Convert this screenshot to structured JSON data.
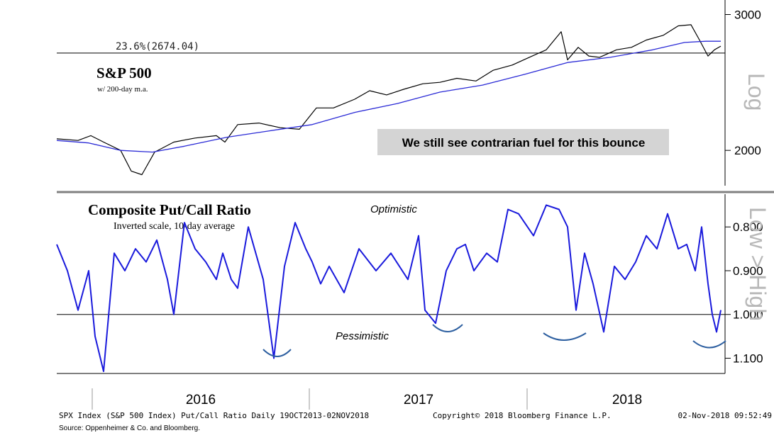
{
  "chart_data": [
    {
      "type": "line",
      "title": "S&P 500",
      "subtitle": "w/ 200-day m.a.",
      "scale_label": "Log",
      "y_axis": {
        "scale": "log",
        "ticks": [
          3000,
          2000
        ],
        "tick_labels": [
          "3000",
          "2000"
        ],
        "range": [
          1800,
          3100
        ]
      },
      "reference_line": {
        "value": 2674.04,
        "label": "23.6%(2674.04)"
      },
      "annotation": "We still see contrarian fuel for this bounce",
      "x_range": [
        2015.7,
        2018.84
      ],
      "series": [
        {
          "color": "#000000",
          "x": [
            2015.7,
            2015.8,
            2015.86,
            2015.92,
            2016.0,
            2016.05,
            2016.1,
            2016.16,
            2016.25,
            2016.35,
            2016.45,
            2016.49,
            2016.55,
            2016.65,
            2016.75,
            2016.84,
            2016.92,
            2017.0,
            2017.1,
            2017.17,
            2017.25,
            2017.33,
            2017.42,
            2017.5,
            2017.58,
            2017.67,
            2017.75,
            2017.84,
            2017.92,
            2018.0,
            2018.07,
            2018.1,
            2018.15,
            2018.2,
            2018.25,
            2018.33,
            2018.4,
            2018.47,
            2018.55,
            2018.62,
            2018.68,
            2018.72,
            2018.76,
            2018.79,
            2018.82
          ],
          "y": [
            2070,
            2060,
            2090,
            2050,
            2000,
            1880,
            1860,
            1990,
            2050,
            2075,
            2090,
            2050,
            2160,
            2170,
            2140,
            2130,
            2270,
            2270,
            2330,
            2390,
            2360,
            2400,
            2440,
            2450,
            2480,
            2460,
            2540,
            2580,
            2640,
            2700,
            2850,
            2620,
            2720,
            2650,
            2640,
            2700,
            2720,
            2780,
            2820,
            2900,
            2910,
            2780,
            2650,
            2700,
            2730
          ]
        },
        {
          "color": "#2b2bd6",
          "x": [
            2015.7,
            2015.85,
            2016.0,
            2016.15,
            2016.3,
            2016.5,
            2016.7,
            2016.9,
            2017.1,
            2017.3,
            2017.5,
            2017.7,
            2017.9,
            2018.1,
            2018.3,
            2018.5,
            2018.65,
            2018.75,
            2018.82
          ],
          "y": [
            2060,
            2045,
            2000,
            1990,
            2025,
            2080,
            2120,
            2160,
            2240,
            2300,
            2380,
            2430,
            2510,
            2600,
            2640,
            2700,
            2760,
            2770,
            2770
          ]
        }
      ]
    },
    {
      "type": "line",
      "title": "Composite Put/Call Ratio",
      "subtitle": "Inverted scale, 10-day average",
      "scale_label": "Low > High",
      "y_axis": {
        "inverted": true,
        "ticks": [
          0.8,
          0.9,
          1.0,
          1.1
        ],
        "tick_labels": [
          "0.800",
          "0.900",
          "1.000",
          "1.100"
        ],
        "range": [
          0.73,
          1.13
        ]
      },
      "reference_line": {
        "value": 1.0
      },
      "annotations": [
        "Optimistic",
        "Pessimistic"
      ],
      "x_range": [
        2015.7,
        2018.84
      ],
      "series": [
        {
          "color": "#1a1adc",
          "x": [
            2015.7,
            2015.75,
            2015.8,
            2015.85,
            2015.88,
            2015.92,
            2015.97,
            2016.02,
            2016.07,
            2016.12,
            2016.17,
            2016.22,
            2016.25,
            2016.3,
            2016.35,
            2016.4,
            2016.45,
            2016.48,
            2016.52,
            2016.55,
            2016.6,
            2016.67,
            2016.72,
            2016.77,
            2016.82,
            2016.87,
            2016.9,
            2016.94,
            2016.98,
            2017.05,
            2017.12,
            2017.2,
            2017.27,
            2017.35,
            2017.4,
            2017.43,
            2017.48,
            2017.53,
            2017.58,
            2017.62,
            2017.66,
            2017.72,
            2017.77,
            2017.82,
            2017.87,
            2017.94,
            2018.0,
            2018.06,
            2018.1,
            2018.14,
            2018.18,
            2018.22,
            2018.27,
            2018.32,
            2018.37,
            2018.42,
            2018.47,
            2018.52,
            2018.57,
            2018.62,
            2018.66,
            2018.7,
            2018.73,
            2018.76,
            2018.78,
            2018.8,
            2018.82
          ],
          "y": [
            0.84,
            0.9,
            0.99,
            0.9,
            1.05,
            1.13,
            0.86,
            0.9,
            0.85,
            0.88,
            0.83,
            0.92,
            1.0,
            0.79,
            0.85,
            0.88,
            0.92,
            0.86,
            0.92,
            0.94,
            0.8,
            0.92,
            1.1,
            0.89,
            0.79,
            0.85,
            0.88,
            0.93,
            0.89,
            0.95,
            0.85,
            0.9,
            0.86,
            0.92,
            0.82,
            0.99,
            1.02,
            0.9,
            0.85,
            0.84,
            0.9,
            0.86,
            0.88,
            0.76,
            0.77,
            0.82,
            0.75,
            0.76,
            0.8,
            0.99,
            0.86,
            0.93,
            1.04,
            0.89,
            0.92,
            0.88,
            0.82,
            0.85,
            0.77,
            0.85,
            0.84,
            0.9,
            0.8,
            0.93,
            1.0,
            1.04,
            0.99
          ]
        }
      ]
    }
  ],
  "x_axis": {
    "tick_labels": [
      "2016",
      "2017",
      "2018"
    ],
    "tick_positions": [
      2016.18,
      2016.82,
      2017.46
    ]
  },
  "footer": {
    "left": "SPX Index (S&P 500 Index) Put/Call Ratio  Daily 19OCT2013-02NOV2018",
    "center": "Copyright© 2018 Bloomberg Finance L.P.",
    "right": "02-Nov-2018 09:52:49",
    "source": "Source:  Oppenheimer & Co. and Bloomberg."
  }
}
